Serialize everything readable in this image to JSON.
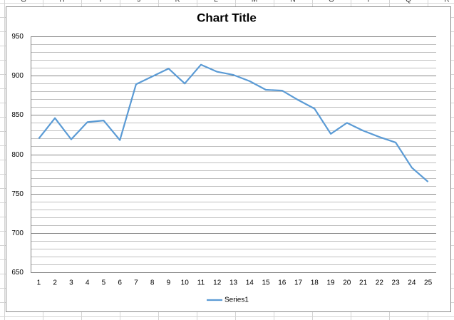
{
  "columns": [
    "G",
    "H",
    "I",
    "J",
    "K",
    "L",
    "M",
    "N",
    "O",
    "P",
    "Q",
    "R"
  ],
  "chart_data": {
    "type": "line",
    "title": "Chart Title",
    "categories": [
      "1",
      "2",
      "3",
      "4",
      "5",
      "6",
      "7",
      "8",
      "9",
      "10",
      "11",
      "12",
      "13",
      "14",
      "15",
      "16",
      "17",
      "18",
      "19",
      "20",
      "21",
      "22",
      "23",
      "24",
      "25"
    ],
    "series": [
      {
        "name": "Series1",
        "color": "#5b9bd5",
        "values": [
          820,
          846,
          819,
          841,
          843,
          818,
          889,
          899,
          909,
          890,
          914,
          905,
          901,
          893,
          882,
          881,
          869,
          858,
          826,
          840,
          830,
          822,
          815,
          783,
          765
        ]
      }
    ],
    "ylim": [
      650,
      950
    ],
    "yticks": [
      650,
      700,
      750,
      800,
      850,
      900,
      950
    ],
    "minor_yticks": [
      660,
      670,
      680,
      690,
      710,
      720,
      730,
      740,
      760,
      770,
      780,
      790,
      810,
      820,
      830,
      840,
      860,
      870,
      880,
      890,
      910,
      920,
      930,
      940
    ],
    "grid": true,
    "legend": "bottom"
  }
}
